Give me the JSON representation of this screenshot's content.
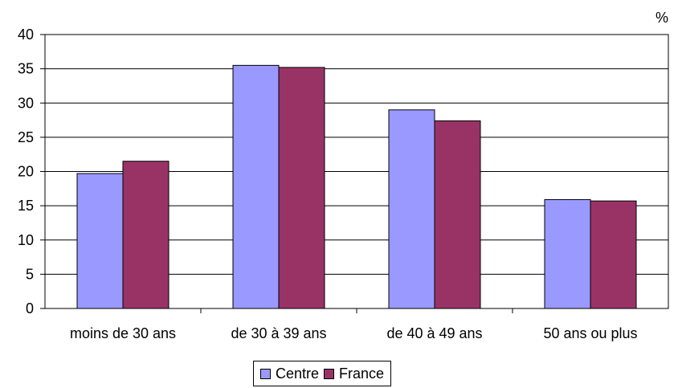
{
  "chart_data": {
    "type": "bar",
    "unit": "%",
    "categories": [
      "moins de 30 ans",
      "de 30 à 39 ans",
      "de 40 à 49 ans",
      "50 ans ou plus"
    ],
    "series": [
      {
        "name": "Centre",
        "values": [
          19.7,
          35.5,
          29.0,
          15.9
        ],
        "color": "#9999ff"
      },
      {
        "name": "France",
        "values": [
          21.5,
          35.2,
          27.4,
          15.7
        ],
        "color": "#993366"
      }
    ],
    "ylim": [
      0,
      40
    ],
    "yticks": [
      "0",
      "5",
      "10",
      "15",
      "20",
      "25",
      "30",
      "35",
      "40"
    ],
    "grid": true,
    "legend_position": "bottom"
  }
}
